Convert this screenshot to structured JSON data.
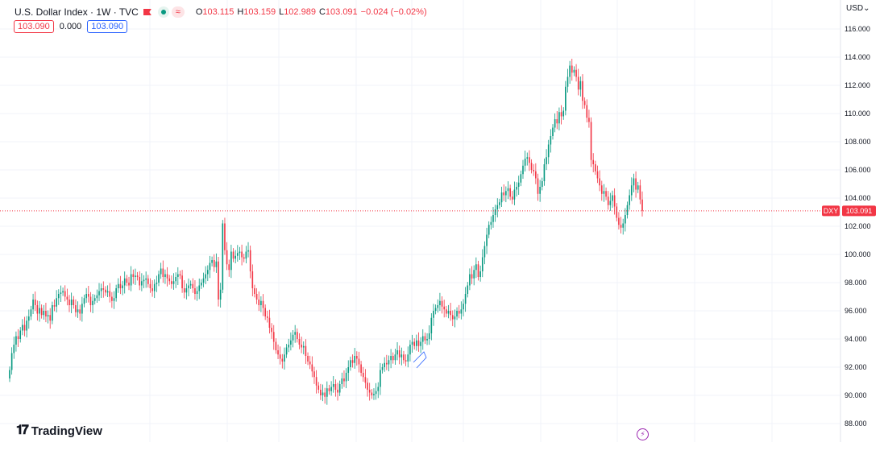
{
  "header": {
    "title": "U.S. Dollar Index · 1W · TVC",
    "ohlc": [
      {
        "key": "O",
        "value": "103.115"
      },
      {
        "key": "H",
        "value": "103.159"
      },
      {
        "key": "L",
        "value": "102.989"
      },
      {
        "key": "C",
        "value": "103.091"
      }
    ],
    "change": "−0.024 (−0.02%)",
    "sell_price": "103.090",
    "spread": "0.000",
    "buy_price": "103.090",
    "status_wave_glyph": "≈"
  },
  "currency_label": "USD⌄",
  "last_price": {
    "symbol": "DXY",
    "value": "103.091",
    "numeric": 103.091
  },
  "brand": {
    "name": "TradingView"
  },
  "colors": {
    "up": "#089981",
    "down": "#f23645",
    "accent": "#2962ff",
    "alert": "#9c27b0"
  },
  "chart_data": {
    "type": "candlestick",
    "title": "U.S. Dollar Index · 1W · TVC",
    "y_axis_ticks": [
      "116.000",
      "114.000",
      "112.000",
      "110.000",
      "108.000",
      "106.000",
      "104.000",
      "102.000",
      "100.000",
      "98.000",
      "96.000",
      "94.000",
      "92.000",
      "90.000",
      "88.000"
    ],
    "ylim": [
      87,
      117
    ],
    "grid": true,
    "last_value": 103.091,
    "closes": [
      91.8,
      93.0,
      93.6,
      94.2,
      94.0,
      94.6,
      95.0,
      94.6,
      95.3,
      95.6,
      96.1,
      96.8,
      96.4,
      95.8,
      96.2,
      95.7,
      96.0,
      95.6,
      95.7,
      95.3,
      96.4,
      96.3,
      96.9,
      97.2,
      97.3,
      97.4,
      97.0,
      96.8,
      96.4,
      96.8,
      96.4,
      95.9,
      96.1,
      95.8,
      96.5,
      96.9,
      97.2,
      97.0,
      96.4,
      96.7,
      96.9,
      97.1,
      97.4,
      97.6,
      97.5,
      97.3,
      97.4,
      97.0,
      96.7,
      96.9,
      97.6,
      97.9,
      97.6,
      97.8,
      98.3,
      98.0,
      97.8,
      98.6,
      98.4,
      98.5,
      98.4,
      97.8,
      98.1,
      98.2,
      98.3,
      97.9,
      97.6,
      97.4,
      97.9,
      98.0,
      98.6,
      99.0,
      98.4,
      98.6,
      98.3,
      98.1,
      97.9,
      98.1,
      98.4,
      98.6,
      98.5,
      97.6,
      97.3,
      97.6,
      97.8,
      97.9,
      97.6,
      97.2,
      97.4,
      97.8,
      98.0,
      98.3,
      98.6,
      98.9,
      99.4,
      99.6,
      99.1,
      99.5,
      96.8,
      97.5,
      102.2,
      100.3,
      99.3,
      98.9,
      100.2,
      99.7,
      99.9,
      100.1,
      100.2,
      99.8,
      99.7,
      100.2,
      100.3,
      98.8,
      97.6,
      97.2,
      96.8,
      96.4,
      96.7,
      96.2,
      95.6,
      95.5,
      94.8,
      94.5,
      93.8,
      93.2,
      92.9,
      92.6,
      92.4,
      92.9,
      93.4,
      93.6,
      93.9,
      94.3,
      94.5,
      94.0,
      93.6,
      93.4,
      93.5,
      92.8,
      92.4,
      92.2,
      91.7,
      91.3,
      90.7,
      90.4,
      90.0,
      90.2,
      89.9,
      90.5,
      90.3,
      90.6,
      90.8,
      90.4,
      90.2,
      90.8,
      91.2,
      91.0,
      91.6,
      92.0,
      92.5,
      92.3,
      92.8,
      92.6,
      92.2,
      91.6,
      91.3,
      90.9,
      90.4,
      90.2,
      90.0,
      90.1,
      90.3,
      90.6,
      91.8,
      92.0,
      92.3,
      92.2,
      92.5,
      92.8,
      92.5,
      92.9,
      93.2,
      92.7,
      92.9,
      92.5,
      92.4,
      92.9,
      93.6,
      93.8,
      93.5,
      93.9,
      93.5,
      93.8,
      94.2,
      93.9,
      94.0,
      94.4,
      95.5,
      96.0,
      96.2,
      96.4,
      96.7,
      96.3,
      96.1,
      95.8,
      96.0,
      95.7,
      95.4,
      95.6,
      96.0,
      95.8,
      96.1,
      96.5,
      97.2,
      97.8,
      98.6,
      98.3,
      98.9,
      99.3,
      98.4,
      98.8,
      99.8,
      100.6,
      101.4,
      102.1,
      102.3,
      102.8,
      103.2,
      103.5,
      103.7,
      104.4,
      104.2,
      104.5,
      104.7,
      104.1,
      103.9,
      104.6,
      104.8,
      105.1,
      105.7,
      106.3,
      106.8,
      106.9,
      106.5,
      106.0,
      105.9,
      105.4,
      104.3,
      104.8,
      105.2,
      106.4,
      106.9,
      107.8,
      108.4,
      109.0,
      109.6,
      109.3,
      110.1,
      109.8,
      110.2,
      111.9,
      112.6,
      113.4,
      112.9,
      113.1,
      112.6,
      111.7,
      112.3,
      110.9,
      110.6,
      109.7,
      109.4,
      106.7,
      106.4,
      105.9,
      105.4,
      104.9,
      104.3,
      104.5,
      104.1,
      103.5,
      103.8,
      104.2,
      103.4,
      102.6,
      102.1,
      101.9,
      102.2,
      102.8,
      103.5,
      104.2,
      104.9,
      105.4,
      104.6,
      104.9,
      103.9,
      103.1
    ]
  }
}
